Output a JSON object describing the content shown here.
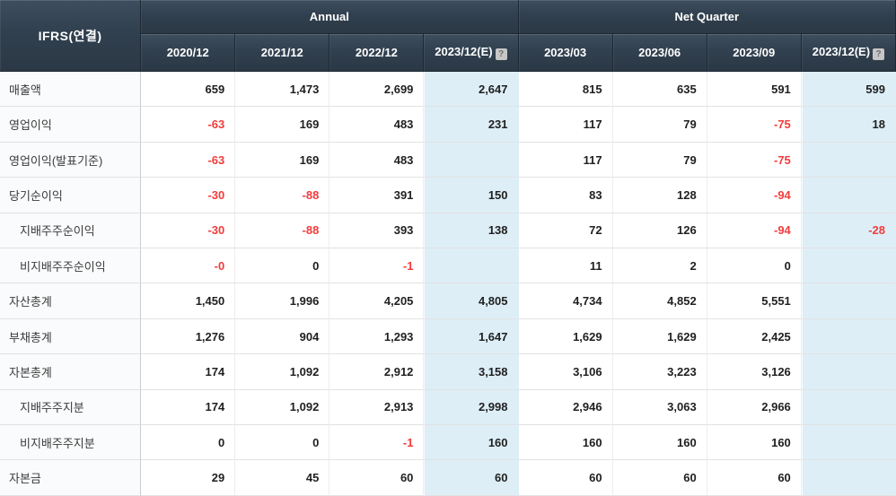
{
  "table": {
    "corner_label": "IFRS(연결)",
    "groups": [
      {
        "label": "Annual",
        "span": 4
      },
      {
        "label": "Net Quarter",
        "span": 4
      }
    ],
    "help_icon": "?",
    "columns": [
      {
        "label": "2020/12",
        "estimate": false
      },
      {
        "label": "2021/12",
        "estimate": false
      },
      {
        "label": "2022/12",
        "estimate": false
      },
      {
        "label": "2023/12(E)",
        "estimate": true
      },
      {
        "label": "2023/03",
        "estimate": false
      },
      {
        "label": "2023/06",
        "estimate": false
      },
      {
        "label": "2023/09",
        "estimate": false
      },
      {
        "label": "2023/12(E)",
        "estimate": true
      }
    ],
    "rows": [
      {
        "label": "매출액",
        "indent": false,
        "values": [
          "659",
          "1,473",
          "2,699",
          "2,647",
          "815",
          "635",
          "591",
          "599"
        ]
      },
      {
        "label": "영업이익",
        "indent": false,
        "values": [
          "-63",
          "169",
          "483",
          "231",
          "117",
          "79",
          "-75",
          "18"
        ]
      },
      {
        "label": "영업이익(발표기준)",
        "indent": false,
        "values": [
          "-63",
          "169",
          "483",
          "",
          "117",
          "79",
          "-75",
          ""
        ]
      },
      {
        "label": "당기순이익",
        "indent": false,
        "values": [
          "-30",
          "-88",
          "391",
          "150",
          "83",
          "128",
          "-94",
          ""
        ]
      },
      {
        "label": "지배주주순이익",
        "indent": true,
        "values": [
          "-30",
          "-88",
          "393",
          "138",
          "72",
          "126",
          "-94",
          "-28"
        ]
      },
      {
        "label": "비지배주주순이익",
        "indent": true,
        "values": [
          "-0",
          "0",
          "-1",
          "",
          "11",
          "2",
          "0",
          ""
        ]
      },
      {
        "label": "자산총계",
        "indent": false,
        "values": [
          "1,450",
          "1,996",
          "4,205",
          "4,805",
          "4,734",
          "4,852",
          "5,551",
          ""
        ]
      },
      {
        "label": "부채총계",
        "indent": false,
        "values": [
          "1,276",
          "904",
          "1,293",
          "1,647",
          "1,629",
          "1,629",
          "2,425",
          ""
        ]
      },
      {
        "label": "자본총계",
        "indent": false,
        "values": [
          "174",
          "1,092",
          "2,912",
          "3,158",
          "3,106",
          "3,223",
          "3,126",
          ""
        ]
      },
      {
        "label": "지배주주지분",
        "indent": true,
        "values": [
          "174",
          "1,092",
          "2,913",
          "2,998",
          "2,946",
          "3,063",
          "2,966",
          ""
        ]
      },
      {
        "label": "비지배주주지분",
        "indent": true,
        "values": [
          "0",
          "0",
          "-1",
          "160",
          "160",
          "160",
          "160",
          ""
        ]
      },
      {
        "label": "자본금",
        "indent": false,
        "values": [
          "29",
          "45",
          "60",
          "60",
          "60",
          "60",
          "60",
          ""
        ]
      }
    ]
  },
  "colors": {
    "header_bg": "#31404f",
    "header_text": "#ffffff",
    "estimate_column_bg": "#ddeef7",
    "negative_value": "#f33b3b",
    "positive_value": "#1f1f1f",
    "row_label_bg": "#fafbfc"
  }
}
